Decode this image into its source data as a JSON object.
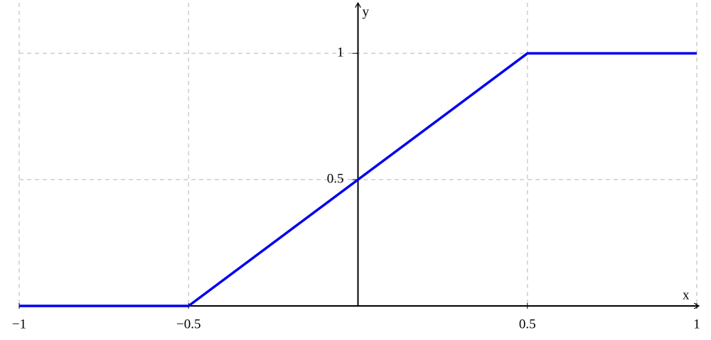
{
  "chart_data": {
    "type": "line",
    "x_label": "x",
    "y_label": "y",
    "x": [
      -1,
      -0.5,
      0.5,
      1
    ],
    "series": [
      {
        "color": "#0000ee",
        "values": [
          0,
          0,
          1,
          1
        ]
      }
    ],
    "xlim": [
      -1,
      1
    ],
    "ylim": [
      0,
      1.2
    ],
    "xticks": [
      {
        "value": -1,
        "label": "−1"
      },
      {
        "value": -0.5,
        "label": "−0.5"
      },
      0.5,
      1
    ],
    "yticks": [
      0.5,
      1
    ],
    "grid": true
  }
}
